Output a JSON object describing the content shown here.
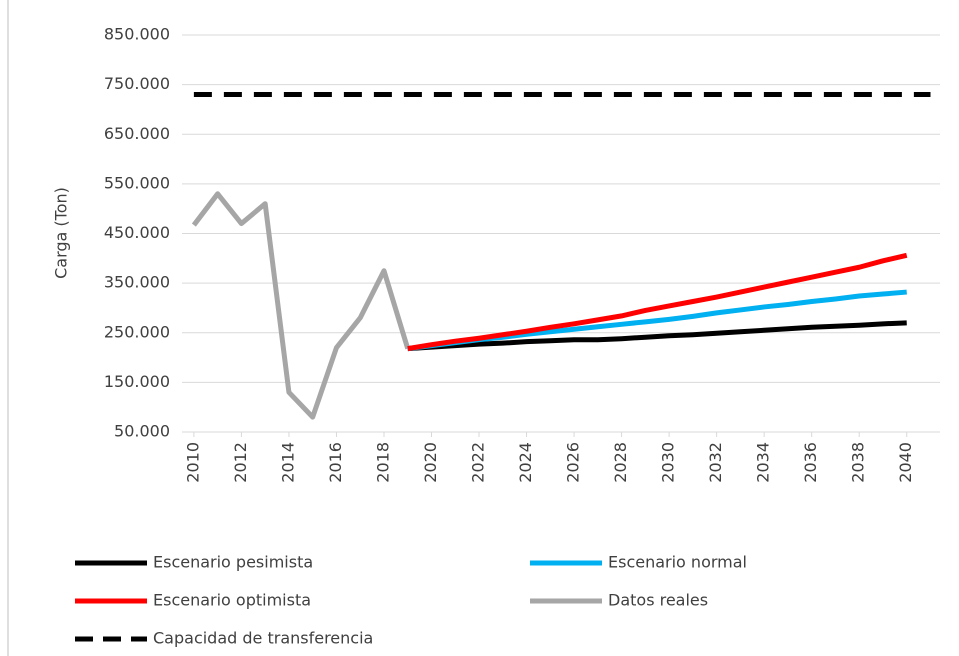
{
  "chart_data": {
    "type": "line",
    "y_label": "Carga (Ton)",
    "xlim": [
      2009.5,
      2041.4
    ],
    "xticks": [
      2010,
      2012,
      2014,
      2016,
      2018,
      2020,
      2022,
      2024,
      2026,
      2028,
      2030,
      2032,
      2034,
      2036,
      2038,
      2040
    ],
    "ylim": [
      50000,
      850000
    ],
    "yticks": [
      {
        "value": 50000,
        "label": "50.000"
      },
      {
        "value": 150000,
        "label": "150.000"
      },
      {
        "value": 250000,
        "label": "250.000"
      },
      {
        "value": 350000,
        "label": "350.000"
      },
      {
        "value": 450000,
        "label": "450.000"
      },
      {
        "value": 550000,
        "label": "550.000"
      },
      {
        "value": 650000,
        "label": "650.000"
      },
      {
        "value": 750000,
        "label": "750.000"
      },
      {
        "value": 850000,
        "label": "850.000"
      }
    ],
    "grid": true,
    "legend": "bottom",
    "series": [
      {
        "name": "Escenario pesimista",
        "color": "#000000",
        "dash": false,
        "x": [
          2019,
          2020,
          2021,
          2022,
          2023,
          2024,
          2025,
          2026,
          2027,
          2028,
          2029,
          2030,
          2031,
          2032,
          2033,
          2034,
          2035,
          2036,
          2037,
          2038,
          2039,
          2040
        ],
        "values": [
          218000,
          221000,
          224000,
          227000,
          229000,
          232000,
          234000,
          236000,
          236000,
          238000,
          241000,
          244000,
          246000,
          249000,
          252000,
          255000,
          258000,
          261000,
          263000,
          265000,
          268000,
          270000
        ]
      },
      {
        "name": "Escenario normal",
        "color": "#00b0f0",
        "dash": false,
        "x": [
          2019,
          2020,
          2021,
          2022,
          2023,
          2024,
          2025,
          2026,
          2027,
          2028,
          2029,
          2030,
          2031,
          2032,
          2033,
          2034,
          2035,
          2036,
          2037,
          2038,
          2039,
          2040
        ],
        "values": [
          218000,
          224000,
          230000,
          236000,
          241000,
          247000,
          252000,
          257000,
          262000,
          267000,
          272000,
          277000,
          283000,
          290000,
          296000,
          302000,
          307000,
          313000,
          318000,
          324000,
          328000,
          332000
        ]
      },
      {
        "name": "Escenario optimista",
        "color": "#ff0000",
        "dash": false,
        "x": [
          2019,
          2020,
          2021,
          2022,
          2023,
          2024,
          2025,
          2026,
          2027,
          2028,
          2029,
          2030,
          2031,
          2032,
          2033,
          2034,
          2035,
          2036,
          2037,
          2038,
          2039,
          2040
        ],
        "values": [
          218000,
          226000,
          233000,
          239000,
          246000,
          253000,
          261000,
          268000,
          276000,
          284000,
          295000,
          304000,
          313000,
          322000,
          332000,
          342000,
          352000,
          362000,
          372000,
          382000,
          395000,
          406000
        ]
      },
      {
        "name": "Datos reales",
        "color": "#a6a6a6",
        "dash": false,
        "x": [
          2010,
          2011,
          2012,
          2013,
          2014,
          2015,
          2016,
          2017,
          2018,
          2019
        ],
        "values": [
          467000,
          530000,
          470000,
          510000,
          130000,
          80000,
          220000,
          280000,
          375000,
          218000
        ]
      },
      {
        "name": "Capacidad de transferencia",
        "color": "#000000",
        "dash": true,
        "x": [
          2010,
          2041
        ],
        "values": [
          730000,
          730000
        ]
      }
    ]
  }
}
